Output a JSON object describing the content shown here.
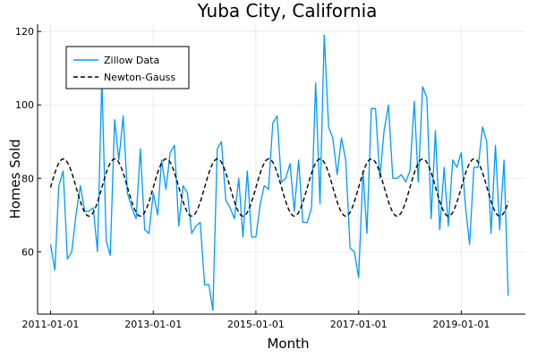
{
  "chart_data": {
    "type": "line",
    "title": "Yuba City, California",
    "xlabel": "Month",
    "ylabel": "Homes Sold",
    "xlim": [
      "2010-10-01",
      "2020-04-01"
    ],
    "ylim": [
      43,
      122
    ],
    "x_ticks": [
      "2011-01-01",
      "2013-01-01",
      "2015-01-01",
      "2017-01-01",
      "2019-01-01"
    ],
    "y_ticks": [
      60,
      80,
      100,
      120
    ],
    "grid": true,
    "legend": "top-left",
    "x_start": "2011-01-01",
    "x_frequency": "monthly",
    "series": [
      {
        "name": "Zillow Data",
        "color": "#009AFA",
        "style": "solid",
        "values": [
          62,
          55,
          78,
          82,
          58,
          60,
          70,
          78,
          71,
          71,
          72,
          60,
          107,
          63,
          59,
          96,
          85,
          97,
          76,
          72,
          69,
          88,
          66,
          65,
          76,
          70,
          85,
          77,
          87,
          89,
          67,
          78,
          76,
          65,
          67,
          68,
          51,
          51,
          44,
          88,
          90,
          74,
          72,
          69,
          80,
          64,
          82,
          64,
          64,
          73,
          78,
          77,
          95,
          97,
          79,
          80,
          84,
          71,
          85,
          68,
          68,
          72,
          106,
          73,
          119,
          94,
          91,
          81,
          91,
          85,
          61,
          60,
          53,
          82,
          65,
          99,
          99,
          80,
          93,
          100,
          80,
          80,
          81,
          79,
          82,
          101,
          79,
          105,
          102,
          69,
          93,
          66,
          83,
          67,
          85,
          83,
          87,
          72,
          62,
          83,
          83,
          94,
          90,
          65,
          89,
          66,
          85,
          48
        ]
      },
      {
        "name": "Newton-Gauss",
        "color": "#000000",
        "style": "dashed",
        "period_months": 12,
        "mean": 77.5,
        "amplitude": 7.8,
        "phase_month_peak": 3
      }
    ]
  }
}
